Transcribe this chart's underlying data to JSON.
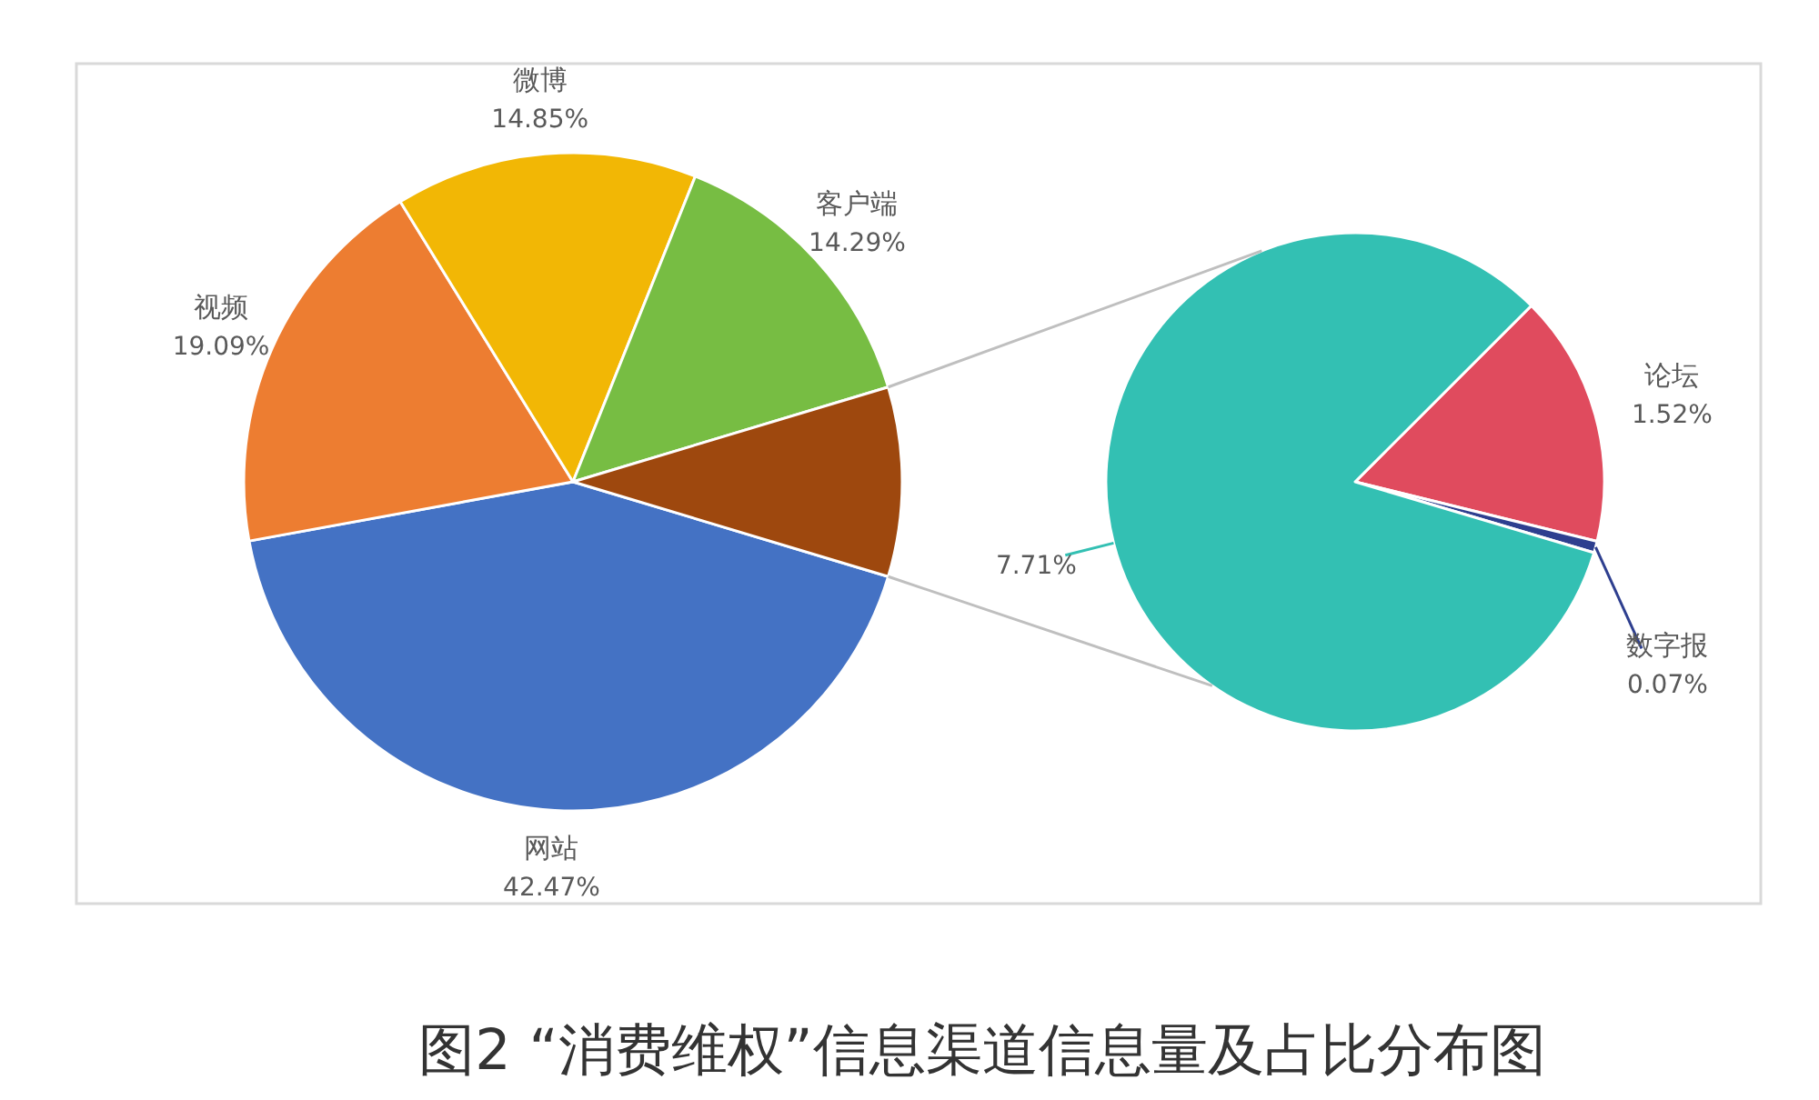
{
  "chart_data": [
    {
      "type": "pie",
      "title": "图2 “消费维权”信息渠道信息量及占比分布图",
      "categories": [
        "网站",
        "视频",
        "微博",
        "客户端",
        null
      ],
      "values": [
        42.47,
        19.09,
        14.85,
        14.29,
        9.3
      ],
      "colors": [
        "#4472c4",
        "#ed7d31",
        "#f2b705",
        "#77bd43",
        "#9e480e"
      ],
      "value_labels": [
        "42.47%",
        "19.09%",
        "14.85%",
        "14.29%",
        null
      ]
    },
    {
      "type": "pie",
      "categories": [
        "论坛",
        "数字报",
        null
      ],
      "values": [
        1.52,
        0.07,
        7.71
      ],
      "colors": [
        "#e04b5e",
        "#2e3f8f",
        "#33c0b3"
      ],
      "value_labels": [
        "1.52%",
        "0.07%",
        "7.71%"
      ]
    }
  ]
}
